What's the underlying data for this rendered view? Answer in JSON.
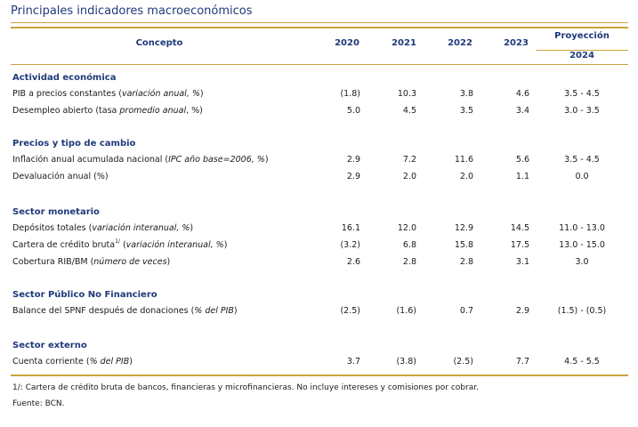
{
  "title": "Principales indicadores macroeconómicos",
  "header": {
    "concepto": "Concepto",
    "years": [
      "2020",
      "2021",
      "2022",
      "2023"
    ],
    "proyeccion": "Proyección",
    "proyeccion_year": "2024"
  },
  "sections": [
    {
      "title": "Actividad económica",
      "rows": [
        {
          "label": "PIB a precios constantes (",
          "label_italic": "variación anual, %",
          "label_end": ")",
          "values": [
            "(1.8)",
            "10.3",
            "3.8",
            "4.6"
          ],
          "proj": "3.5 - 4.5"
        },
        {
          "label": "Desempleo abierto (tasa ",
          "label_italic": "promedio anual",
          "label_end": ", %)",
          "values": [
            "5.0",
            "4.5",
            "3.5",
            "3.4"
          ],
          "proj": "3.0 - 3.5"
        }
      ]
    },
    {
      "title": "Precios y tipo de cambio",
      "rows": [
        {
          "label": "Inflación anual acumulada nacional (",
          "label_italic": "IPC año base=2006, %",
          "label_end": ")",
          "values": [
            "2.9",
            "7.2",
            "11.6",
            "5.6"
          ],
          "proj": "3.5 - 4.5"
        },
        {
          "label": "Devaluación anual (%)",
          "label_italic": "",
          "label_end": "",
          "values": [
            "2.9",
            "2.0",
            "2.0",
            "1.1"
          ],
          "proj": "0.0"
        }
      ]
    },
    {
      "title": "Sector monetario",
      "rows": [
        {
          "label": "Depósitos totales (",
          "label_italic": "variación interanual, %",
          "label_end": ")",
          "values": [
            "16.1",
            "12.0",
            "12.9",
            "14.5"
          ],
          "proj": "11.0 - 13.0"
        },
        {
          "label": "Cartera de crédito bruta",
          "sup": "1/",
          "label_after_sup": " (",
          "label_italic": "variación interanual, %",
          "label_end": ")",
          "values": [
            "(3.2)",
            "6.8",
            "15.8",
            "17.5"
          ],
          "proj": "13.0 - 15.0"
        },
        {
          "label": "Cobertura RIB/BM (",
          "label_italic": "número de veces",
          "label_end": ")",
          "values": [
            "2.6",
            "2.8",
            "2.8",
            "3.1"
          ],
          "proj": "3.0"
        }
      ]
    },
    {
      "title": "Sector Público No Financiero",
      "rows": [
        {
          "label": "Balance del SPNF después de donaciones (",
          "label_italic": "% del PIB",
          "label_end": ")",
          "values": [
            "(2.5)",
            "(1.6)",
            "0.7",
            "2.9"
          ],
          "proj": "(1.5) - (0.5)"
        }
      ]
    },
    {
      "title": "Sector externo",
      "rows": [
        {
          "label": "Cuenta corriente (",
          "label_italic": "% del PIB",
          "label_end": ")",
          "values": [
            "3.7",
            "(3.8)",
            "(2.5)",
            "7.7"
          ],
          "proj": "4.5 - 5.5"
        }
      ]
    }
  ],
  "footnotes": [
    "1/: Cartera de crédito bruta de bancos, financieras y microfinancieras. No incluye intereses y comisiones por cobrar.",
    "Fuente: BCN."
  ]
}
